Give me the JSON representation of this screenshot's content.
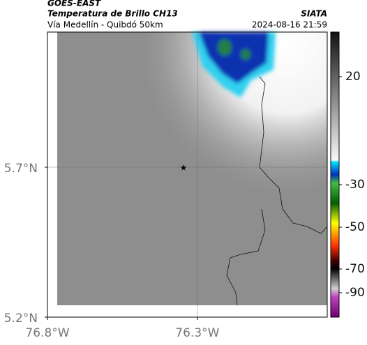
{
  "header": {
    "source": "GOES-EAST",
    "title": "Temperatura de Brillo CH13",
    "subtitle": "Vía Medellín - Quibdó 50km",
    "agency": "SIATA",
    "datetime": "2024-08-16 21:59"
  },
  "map": {
    "lonlim": [
      -76.8,
      -75.867
    ],
    "latlim": [
      5.2,
      6.151
    ],
    "lon_ticks": [
      {
        "value": -76.8,
        "label": "76.8°W"
      },
      {
        "value": -76.3,
        "label": "76.3°W"
      }
    ],
    "lat_ticks": [
      {
        "value": 5.7,
        "label": "5.7°N"
      },
      {
        "value": 5.2,
        "label": "5.2°N"
      }
    ]
  },
  "colorbar": {
    "ticks": [
      20,
      -30,
      -50,
      -70,
      -90
    ]
  }
}
